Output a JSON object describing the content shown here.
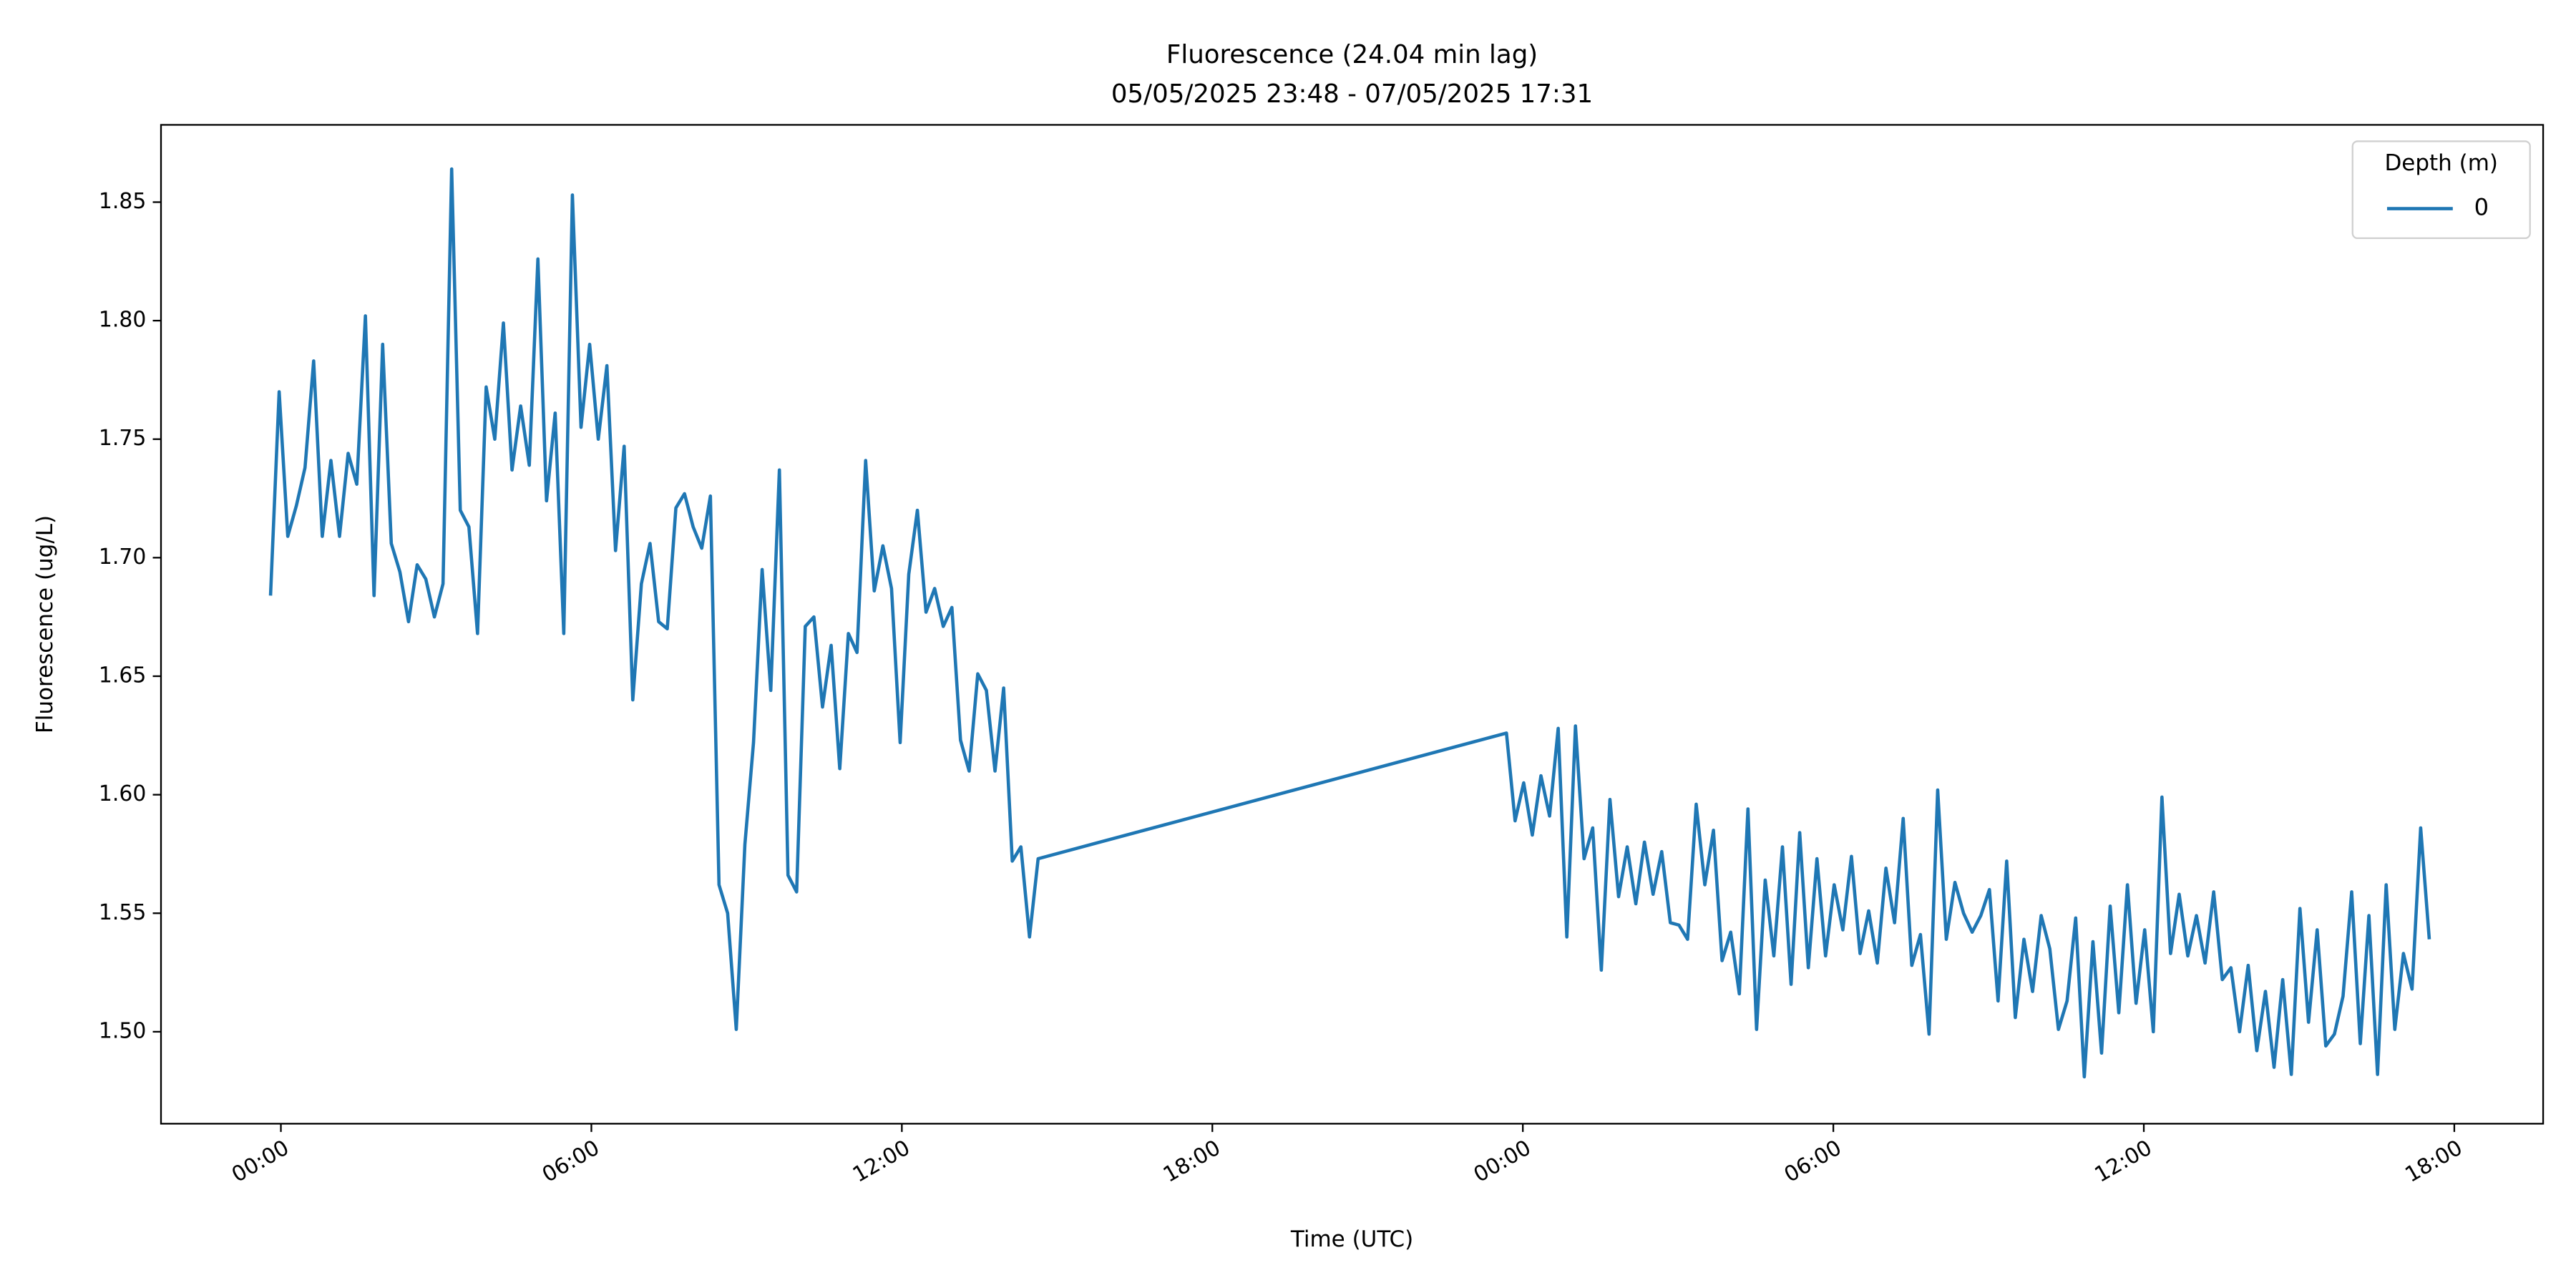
{
  "chart_data": {
    "type": "line",
    "title": "Fluorescence (24.04 min lag)",
    "subtitle": "05/05/2025 23:48 - 07/05/2025 17:31",
    "x_label": "Time (UTC)",
    "y_label": "Fluorescence (ug/L)",
    "legend_title": "Depth (m)",
    "legend": "upper right",
    "grid": false,
    "x": [
      "2025-05-05 23:48",
      "2025-05-05 23:58",
      "2025-05-06 00:08",
      "2025-05-06 00:18",
      "2025-05-06 00:28",
      "2025-05-06 00:38",
      "2025-05-06 00:48",
      "2025-05-06 00:58",
      "2025-05-06 01:08",
      "2025-05-06 01:18",
      "2025-05-06 01:28",
      "2025-05-06 01:38",
      "2025-05-06 01:48",
      "2025-05-06 01:58",
      "2025-05-06 02:08",
      "2025-05-06 02:18",
      "2025-05-06 02:28",
      "2025-05-06 02:38",
      "2025-05-06 02:48",
      "2025-05-06 02:58",
      "2025-05-06 03:08",
      "2025-05-06 03:18",
      "2025-05-06 03:28",
      "2025-05-06 03:38",
      "2025-05-06 03:48",
      "2025-05-06 03:58",
      "2025-05-06 04:08",
      "2025-05-06 04:18",
      "2025-05-06 04:28",
      "2025-05-06 04:38",
      "2025-05-06 04:48",
      "2025-05-06 04:58",
      "2025-05-06 05:08",
      "2025-05-06 05:18",
      "2025-05-06 05:28",
      "2025-05-06 05:38",
      "2025-05-06 05:48",
      "2025-05-06 05:58",
      "2025-05-06 06:08",
      "2025-05-06 06:18",
      "2025-05-06 06:28",
      "2025-05-06 06:38",
      "2025-05-06 06:48",
      "2025-05-06 06:58",
      "2025-05-06 07:08",
      "2025-05-06 07:18",
      "2025-05-06 07:28",
      "2025-05-06 07:38",
      "2025-05-06 07:48",
      "2025-05-06 07:58",
      "2025-05-06 08:08",
      "2025-05-06 08:18",
      "2025-05-06 08:28",
      "2025-05-06 08:38",
      "2025-05-06 08:48",
      "2025-05-06 08:58",
      "2025-05-06 09:08",
      "2025-05-06 09:18",
      "2025-05-06 09:28",
      "2025-05-06 09:38",
      "2025-05-06 09:48",
      "2025-05-06 09:58",
      "2025-05-06 10:08",
      "2025-05-06 10:18",
      "2025-05-06 10:28",
      "2025-05-06 10:38",
      "2025-05-06 10:48",
      "2025-05-06 10:58",
      "2025-05-06 11:08",
      "2025-05-06 11:18",
      "2025-05-06 11:28",
      "2025-05-06 11:38",
      "2025-05-06 11:48",
      "2025-05-06 11:58",
      "2025-05-06 12:08",
      "2025-05-06 12:18",
      "2025-05-06 12:28",
      "2025-05-06 12:38",
      "2025-05-06 12:48",
      "2025-05-06 12:58",
      "2025-05-06 13:08",
      "2025-05-06 13:18",
      "2025-05-06 13:28",
      "2025-05-06 13:38",
      "2025-05-06 13:48",
      "2025-05-06 13:58",
      "2025-05-06 14:08",
      "2025-05-06 14:18",
      "2025-05-06 14:28",
      "2025-05-06 14:38",
      "2025-05-06 23:41",
      "2025-05-06 23:51",
      "2025-05-07 00:01",
      "2025-05-07 00:11",
      "2025-05-07 00:21",
      "2025-05-07 00:31",
      "2025-05-07 00:41",
      "2025-05-07 00:51",
      "2025-05-07 01:01",
      "2025-05-07 01:11",
      "2025-05-07 01:21",
      "2025-05-07 01:31",
      "2025-05-07 01:41",
      "2025-05-07 01:51",
      "2025-05-07 02:01",
      "2025-05-07 02:11",
      "2025-05-07 02:21",
      "2025-05-07 02:31",
      "2025-05-07 02:41",
      "2025-05-07 02:51",
      "2025-05-07 03:01",
      "2025-05-07 03:11",
      "2025-05-07 03:21",
      "2025-05-07 03:31",
      "2025-05-07 03:41",
      "2025-05-07 03:51",
      "2025-05-07 04:01",
      "2025-05-07 04:11",
      "2025-05-07 04:21",
      "2025-05-07 04:31",
      "2025-05-07 04:41",
      "2025-05-07 04:51",
      "2025-05-07 05:01",
      "2025-05-07 05:11",
      "2025-05-07 05:21",
      "2025-05-07 05:31",
      "2025-05-07 05:41",
      "2025-05-07 05:51",
      "2025-05-07 06:01",
      "2025-05-07 06:11",
      "2025-05-07 06:21",
      "2025-05-07 06:31",
      "2025-05-07 06:41",
      "2025-05-07 06:51",
      "2025-05-07 07:01",
      "2025-05-07 07:11",
      "2025-05-07 07:21",
      "2025-05-07 07:31",
      "2025-05-07 07:41",
      "2025-05-07 07:51",
      "2025-05-07 08:01",
      "2025-05-07 08:11",
      "2025-05-07 08:21",
      "2025-05-07 08:31",
      "2025-05-07 08:41",
      "2025-05-07 08:51",
      "2025-05-07 09:01",
      "2025-05-07 09:11",
      "2025-05-07 09:21",
      "2025-05-07 09:31",
      "2025-05-07 09:41",
      "2025-05-07 09:51",
      "2025-05-07 10:01",
      "2025-05-07 10:11",
      "2025-05-07 10:21",
      "2025-05-07 10:31",
      "2025-05-07 10:41",
      "2025-05-07 10:51",
      "2025-05-07 11:01",
      "2025-05-07 11:11",
      "2025-05-07 11:21",
      "2025-05-07 11:31",
      "2025-05-07 11:41",
      "2025-05-07 11:51",
      "2025-05-07 12:01",
      "2025-05-07 12:11",
      "2025-05-07 12:21",
      "2025-05-07 12:31",
      "2025-05-07 12:41",
      "2025-05-07 12:51",
      "2025-05-07 13:01",
      "2025-05-07 13:11",
      "2025-05-07 13:21",
      "2025-05-07 13:31",
      "2025-05-07 13:41",
      "2025-05-07 13:51",
      "2025-05-07 14:01",
      "2025-05-07 14:11",
      "2025-05-07 14:21",
      "2025-05-07 14:31",
      "2025-05-07 14:41",
      "2025-05-07 14:51",
      "2025-05-07 15:01",
      "2025-05-07 15:11",
      "2025-05-07 15:21",
      "2025-05-07 15:31",
      "2025-05-07 15:41",
      "2025-05-07 15:51",
      "2025-05-07 16:01",
      "2025-05-07 16:11",
      "2025-05-07 16:21",
      "2025-05-07 16:31",
      "2025-05-07 16:41",
      "2025-05-07 16:51",
      "2025-05-07 17:01",
      "2025-05-07 17:11",
      "2025-05-07 17:21",
      "2025-05-07 17:31"
    ],
    "series": [
      {
        "name": "0",
        "color": "#1f77b4",
        "values": [
          1.684,
          1.77,
          1.709,
          1.722,
          1.738,
          1.783,
          1.709,
          1.741,
          1.709,
          1.744,
          1.731,
          1.802,
          1.684,
          1.79,
          1.706,
          1.694,
          1.673,
          1.697,
          1.691,
          1.675,
          1.689,
          1.864,
          1.72,
          1.713,
          1.668,
          1.772,
          1.75,
          1.799,
          1.737,
          1.764,
          1.739,
          1.826,
          1.724,
          1.761,
          1.668,
          1.853,
          1.755,
          1.79,
          1.75,
          1.781,
          1.703,
          1.747,
          1.64,
          1.689,
          1.706,
          1.673,
          1.67,
          1.721,
          1.727,
          1.713,
          1.704,
          1.726,
          1.562,
          1.55,
          1.501,
          1.579,
          1.622,
          1.695,
          1.644,
          1.737,
          1.566,
          1.559,
          1.671,
          1.675,
          1.637,
          1.663,
          1.611,
          1.668,
          1.66,
          1.741,
          1.686,
          1.705,
          1.687,
          1.622,
          1.693,
          1.72,
          1.677,
          1.687,
          1.671,
          1.679,
          1.623,
          1.61,
          1.651,
          1.644,
          1.61,
          1.645,
          1.572,
          1.578,
          1.54,
          1.573,
          1.626,
          1.589,
          1.605,
          1.583,
          1.608,
          1.591,
          1.628,
          1.54,
          1.629,
          1.573,
          1.586,
          1.526,
          1.598,
          1.557,
          1.578,
          1.554,
          1.58,
          1.558,
          1.576,
          1.546,
          1.545,
          1.539,
          1.596,
          1.562,
          1.585,
          1.53,
          1.542,
          1.516,
          1.594,
          1.501,
          1.564,
          1.532,
          1.578,
          1.52,
          1.584,
          1.527,
          1.573,
          1.532,
          1.562,
          1.543,
          1.574,
          1.533,
          1.551,
          1.529,
          1.569,
          1.546,
          1.59,
          1.528,
          1.541,
          1.499,
          1.602,
          1.539,
          1.563,
          1.55,
          1.542,
          1.549,
          1.56,
          1.513,
          1.572,
          1.506,
          1.539,
          1.517,
          1.549,
          1.535,
          1.501,
          1.513,
          1.548,
          1.481,
          1.538,
          1.491,
          1.553,
          1.508,
          1.562,
          1.512,
          1.543,
          1.5,
          1.599,
          1.533,
          1.558,
          1.532,
          1.549,
          1.529,
          1.559,
          1.522,
          1.527,
          1.5,
          1.528,
          1.492,
          1.517,
          1.485,
          1.522,
          1.482,
          1.552,
          1.504,
          1.543,
          1.494,
          1.499,
          1.515,
          1.559,
          1.495,
          1.549,
          1.482,
          1.562,
          1.501,
          1.533,
          1.518,
          1.586,
          1.539
        ]
      }
    ],
    "xlim": [
      "2025-05-05 21:41",
      "2025-05-07 19:43"
    ],
    "xticks": [
      {
        "value": "2025-05-06 00:00",
        "label": "00:00"
      },
      {
        "value": "2025-05-06 06:00",
        "label": "06:00"
      },
      {
        "value": "2025-05-06 12:00",
        "label": "12:00"
      },
      {
        "value": "2025-05-06 18:00",
        "label": "18:00"
      },
      {
        "value": "2025-05-07 00:00",
        "label": "00:00"
      },
      {
        "value": "2025-05-07 06:00",
        "label": "06:00"
      },
      {
        "value": "2025-05-07 12:00",
        "label": "12:00"
      },
      {
        "value": "2025-05-07 18:00",
        "label": "18:00"
      }
    ],
    "ylim": [
      1.4612,
      1.8826
    ],
    "yticks": [
      {
        "value": 1.5,
        "label": "1.50"
      },
      {
        "value": 1.55,
        "label": "1.55"
      },
      {
        "value": 1.6,
        "label": "1.60"
      },
      {
        "value": 1.65,
        "label": "1.65"
      },
      {
        "value": 1.7,
        "label": "1.70"
      },
      {
        "value": 1.75,
        "label": "1.75"
      },
      {
        "value": 1.8,
        "label": "1.80"
      },
      {
        "value": 1.85,
        "label": "1.85"
      }
    ]
  }
}
